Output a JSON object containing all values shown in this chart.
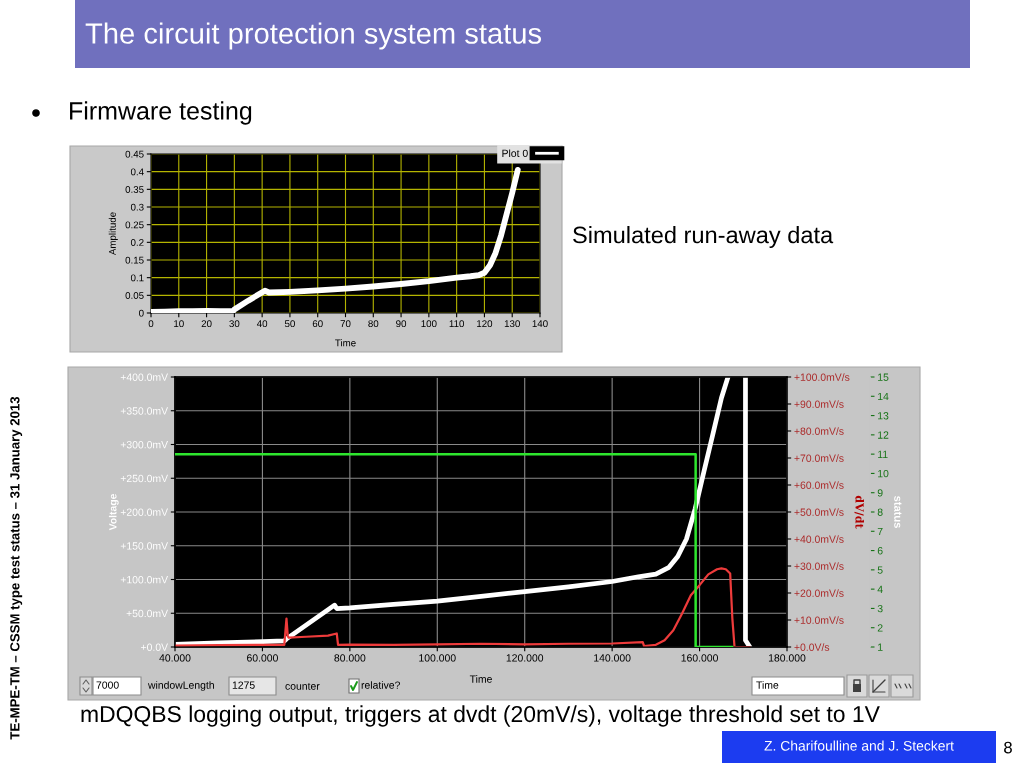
{
  "chart_data": [
    {
      "type": "line",
      "title": "The circuit protection system status",
      "subtitle": "Firmware testing",
      "xlabel": "Time",
      "ylabel": "Amplitude",
      "xlim": [
        0,
        140
      ],
      "xticks": [
        0,
        10,
        20,
        30,
        40,
        50,
        60,
        70,
        80,
        90,
        100,
        110,
        120,
        130,
        140
      ],
      "ylim": [
        0,
        0.45
      ],
      "yticks": [
        0,
        0.05,
        0.1,
        0.15,
        0.2,
        0.25,
        0.3,
        0.35,
        0.4,
        0.45
      ],
      "grid": true,
      "legend": "top right",
      "series": [
        {
          "name": "Plot 0",
          "color": "#ffffff",
          "x": [
            0,
            5,
            10,
            15,
            20,
            25,
            29.5,
            30,
            35,
            41,
            42.5,
            50,
            60,
            70,
            80,
            90,
            100,
            110,
            115,
            118,
            120,
            122,
            124,
            126,
            128,
            130,
            132
          ],
          "values": [
            0.003,
            0.004,
            0.005,
            0.005,
            0.006,
            0.005,
            0.005,
            0.01,
            0.035,
            0.063,
            0.058,
            0.06,
            0.064,
            0.069,
            0.075,
            0.082,
            0.09,
            0.1,
            0.104,
            0.107,
            0.114,
            0.135,
            0.17,
            0.22,
            0.28,
            0.34,
            0.405
          ]
        }
      ],
      "annotations": [
        "Simulated run-away data"
      ]
    },
    {
      "type": "line",
      "xlabel": "Time",
      "ylabel": "Voltage",
      "y2label": "dV/dt",
      "y3label": "status",
      "xlim": [
        40,
        180
      ],
      "xticks": [
        {
          "value": 40,
          "label": "40.000"
        },
        {
          "value": 60,
          "label": "60.000"
        },
        {
          "value": 80,
          "label": "80.000"
        },
        {
          "value": 100,
          "label": "100.000"
        },
        {
          "value": 120,
          "label": "120.000"
        },
        {
          "value": 140,
          "label": "140.000"
        },
        {
          "value": 160,
          "label": "160.000"
        },
        {
          "value": 180,
          "label": "180.000"
        }
      ],
      "ylim": [
        0,
        400
      ],
      "yticks": [
        {
          "value": 0,
          "label": "+0.0V"
        },
        {
          "value": 50,
          "label": "+50.0mV"
        },
        {
          "value": 100,
          "label": "+100.0mV"
        },
        {
          "value": 150,
          "label": "+150.0mV"
        },
        {
          "value": 200,
          "label": "+200.0mV"
        },
        {
          "value": 250,
          "label": "+250.0mV"
        },
        {
          "value": 300,
          "label": "+300.0mV"
        },
        {
          "value": 350,
          "label": "+350.0mV"
        },
        {
          "value": 400,
          "label": "+400.0mV"
        }
      ],
      "y2lim": [
        0,
        100
      ],
      "y2ticks": [
        {
          "value": 0,
          "label": "+0.0V/s"
        },
        {
          "value": 10,
          "label": "+10.0mV/s"
        },
        {
          "value": 20,
          "label": "+20.0mV/s"
        },
        {
          "value": 30,
          "label": "+30.0mV/s"
        },
        {
          "value": 40,
          "label": "+40.0mV/s"
        },
        {
          "value": 50,
          "label": "+50.0mV/s"
        },
        {
          "value": 60,
          "label": "+60.0mV/s"
        },
        {
          "value": 70,
          "label": "+70.0mV/s"
        },
        {
          "value": 80,
          "label": "+80.0mV/s"
        },
        {
          "value": 90,
          "label": "+90.0mV/s"
        },
        {
          "value": 100,
          "label": "+100.0mV/s"
        }
      ],
      "y3lim": [
        1,
        15
      ],
      "y3ticks": [
        1,
        2,
        3,
        4,
        5,
        6,
        7,
        8,
        9,
        10,
        11,
        12,
        13,
        14,
        15
      ],
      "grid": true,
      "series": [
        {
          "color": "#ffffff",
          "x": [
            40,
            50,
            60,
            65,
            65.5,
            76.5,
            77,
            80,
            90,
            100,
            110,
            120,
            130,
            140,
            146,
            150,
            153,
            155,
            157,
            159,
            161,
            163,
            165,
            166.5,
            168.5,
            170.5,
            170.5,
            171.5
          ],
          "values": [
            4,
            6,
            8,
            9,
            12,
            62,
            57,
            58,
            63,
            68,
            75,
            82,
            89,
            97,
            104,
            108,
            118,
            134,
            160,
            205,
            260,
            314,
            369,
            400,
            null,
            400,
            10,
            0
          ]
        },
        {
          "color": "#ee3b3b",
          "axis": "y2",
          "x": [
            40,
            50,
            60,
            65,
            65.5,
            65.8,
            66,
            70,
            75,
            77,
            77.3,
            80,
            90,
            100,
            110,
            120,
            130,
            140,
            147,
            147.3,
            150,
            152,
            154,
            156,
            158,
            160,
            162,
            164,
            165,
            166,
            167,
            167.5,
            168,
            170,
            171.5
          ],
          "values": [
            0.5,
            0.7,
            0.8,
            0.8,
            10.5,
            4,
            3.5,
            3.8,
            4.2,
            5,
            0.8,
            0.9,
            0.8,
            1,
            1.2,
            1,
            1.2,
            1.3,
            1.8,
            0.3,
            0.8,
            2.5,
            6.2,
            12.4,
            19.2,
            22.9,
            26.9,
            28.8,
            29.1,
            28.8,
            27.2,
            10.5,
            0,
            0,
            0
          ]
        },
        {
          "color": "#2ee62e",
          "axis": "y3",
          "x": [
            40,
            159.1,
            159.1,
            167.5
          ],
          "values": [
            11,
            11,
            1,
            1
          ]
        }
      ],
      "annotations": [
        "7000",
        "windowLength",
        "1275",
        "counter",
        "relative?",
        "Time",
        "mDQQBS logging output, triggers at dvdt (20mV/s), voltage threshold set to 1V",
        "TE-MPE-TM – CSSM type test status – 31 January 2013",
        "Z. Charifoulline and J. Steckert",
        "8"
      ]
    }
  ]
}
